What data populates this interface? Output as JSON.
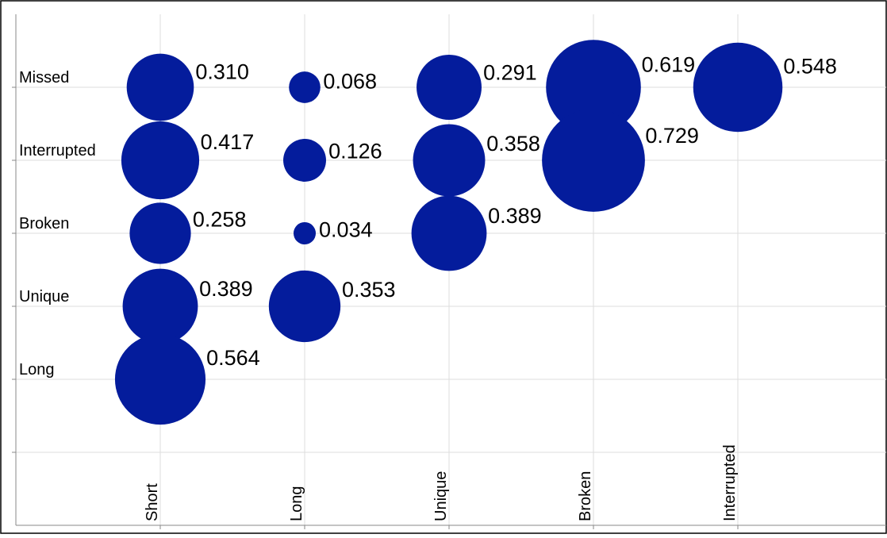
{
  "chart_data": {
    "type": "bubble",
    "x_categories": [
      "Short",
      "Long",
      "Unique",
      "Broken",
      "Interrupted"
    ],
    "y_categories": [
      "Long",
      "Unique",
      "Broken",
      "Interrupted",
      "Missed"
    ],
    "points": [
      {
        "x": "Short",
        "y": "Missed",
        "value": 0.31,
        "label": "0.310"
      },
      {
        "x": "Short",
        "y": "Interrupted",
        "value": 0.417,
        "label": "0.417"
      },
      {
        "x": "Short",
        "y": "Broken",
        "value": 0.258,
        "label": "0.258"
      },
      {
        "x": "Short",
        "y": "Unique",
        "value": 0.389,
        "label": "0.389"
      },
      {
        "x": "Short",
        "y": "Long",
        "value": 0.564,
        "label": "0.564"
      },
      {
        "x": "Long",
        "y": "Missed",
        "value": 0.068,
        "label": "0.068"
      },
      {
        "x": "Long",
        "y": "Interrupted",
        "value": 0.126,
        "label": "0.126"
      },
      {
        "x": "Long",
        "y": "Broken",
        "value": 0.034,
        "label": "0.034"
      },
      {
        "x": "Long",
        "y": "Unique",
        "value": 0.353,
        "label": "0.353"
      },
      {
        "x": "Unique",
        "y": "Missed",
        "value": 0.291,
        "label": "0.291"
      },
      {
        "x": "Unique",
        "y": "Interrupted",
        "value": 0.358,
        "label": "0.358"
      },
      {
        "x": "Unique",
        "y": "Broken",
        "value": 0.389,
        "label": "0.389"
      },
      {
        "x": "Broken",
        "y": "Missed",
        "value": 0.619,
        "label": "0.619"
      },
      {
        "x": "Broken",
        "y": "Interrupted",
        "value": 0.729,
        "label": "0.729"
      },
      {
        "x": "Interrupted",
        "y": "Missed",
        "value": 0.548,
        "label": "0.548"
      }
    ],
    "bubble_color": "#041c9c",
    "grid": true,
    "legend": "none",
    "title": "",
    "xlabel": "",
    "ylabel": ""
  }
}
